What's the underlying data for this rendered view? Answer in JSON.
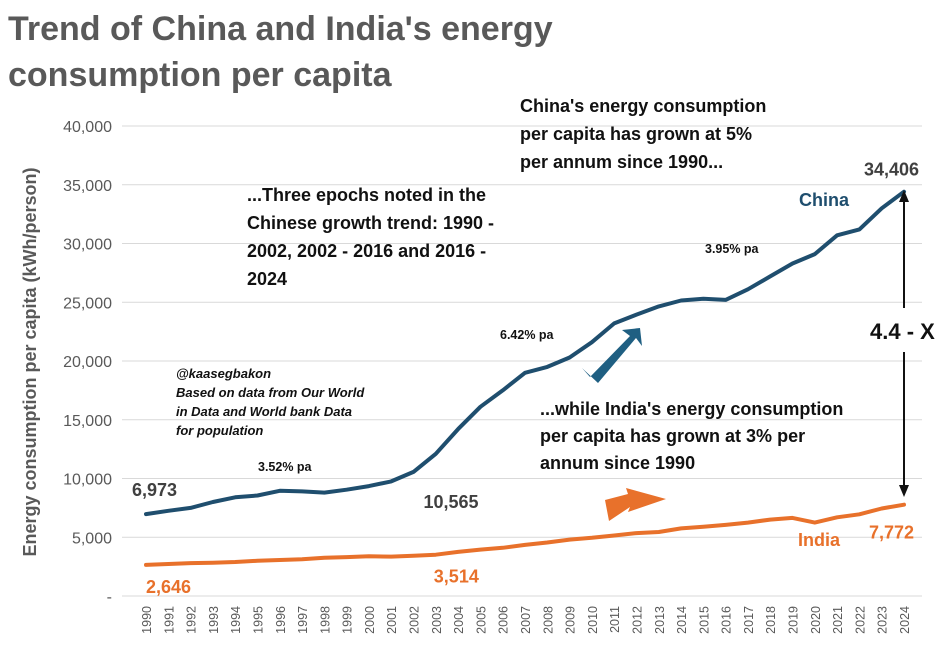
{
  "chart_data": {
    "type": "line",
    "title_lines": [
      "Trend of China and India's energy",
      "consumption per capita"
    ],
    "ylabel": "Energy consumption per capita (kWh/person)",
    "xlabel": "",
    "ylim": [
      0,
      40000
    ],
    "yticks": [
      0,
      5000,
      10000,
      15000,
      20000,
      25000,
      30000,
      35000,
      40000
    ],
    "ytick_labels": [
      "-",
      "5,000",
      "10,000",
      "15,000",
      "20,000",
      "25,000",
      "30,000",
      "35,000",
      "40,000"
    ],
    "grid": true,
    "x": [
      "1990",
      "1991",
      "1992",
      "1993",
      "1994",
      "1995",
      "1996",
      "1997",
      "1998",
      "1999",
      "2000",
      "2001",
      "2002",
      "2003",
      "2004",
      "2005",
      "2006",
      "2007",
      "2008",
      "2009",
      "2010",
      "2011",
      "2012",
      "2013",
      "2014",
      "2015",
      "2016",
      "2017",
      "2018",
      "2019",
      "2020",
      "2021",
      "2022",
      "2023",
      "2024"
    ],
    "series": [
      {
        "name": "China",
        "color": "#1f4e6e",
        "values": [
          6973,
          7250,
          7500,
          8000,
          8400,
          8550,
          8950,
          8900,
          8800,
          9050,
          9350,
          9750,
          10565,
          12100,
          14200,
          16100,
          17500,
          19000,
          19500,
          20300,
          21600,
          23200,
          23950,
          24650,
          25150,
          25300,
          25200,
          26100,
          27200,
          28300,
          29100,
          30700,
          31200,
          33000,
          34406
        ]
      },
      {
        "name": "India",
        "color": "#e8712b",
        "values": [
          2646,
          2720,
          2800,
          2830,
          2890,
          3000,
          3060,
          3120,
          3250,
          3310,
          3380,
          3350,
          3420,
          3514,
          3750,
          3950,
          4100,
          4350,
          4550,
          4800,
          4950,
          5150,
          5350,
          5450,
          5750,
          5900,
          6050,
          6250,
          6500,
          6650,
          6250,
          6700,
          6950,
          7450,
          7772
        ]
      }
    ],
    "series_labels": [
      "China",
      "India"
    ],
    "data_labels": [
      {
        "text": "6,973",
        "series": "China",
        "year": "1990"
      },
      {
        "text": "10,565",
        "series": "China",
        "year": "2002"
      },
      {
        "text": "34,406",
        "series": "China",
        "year": "2024"
      },
      {
        "text": "2,646",
        "series": "India",
        "year": "1990"
      },
      {
        "text": "3,514",
        "series": "India",
        "year": "2003"
      },
      {
        "text": "7,772",
        "series": "India",
        "year": "2024"
      }
    ],
    "rate_labels": [
      "3.52% pa",
      "6.42% pa",
      "3.95% pa"
    ],
    "annotations": {
      "china_growth": [
        "China's energy consumption",
        "per capita has grown at 5%",
        "per annum since 1990..."
      ],
      "epochs": [
        "...Three epochs noted in the",
        "Chinese growth trend: 1990 -",
        "2002, 2002 - 2016 and 2016 -",
        "2024"
      ],
      "india_growth": [
        "...while India's energy consumption",
        "per capita has grown at 3% per",
        "annum since 1990"
      ],
      "source": [
        "@kaasegbakon",
        "Based on data from Our World",
        "in Data and World bank Data",
        "for population"
      ],
      "ratio": "4.4 - X"
    },
    "arrow_colors": {
      "china": "#1f5f82",
      "india": "#e8712b",
      "ratio": "#111111"
    }
  }
}
